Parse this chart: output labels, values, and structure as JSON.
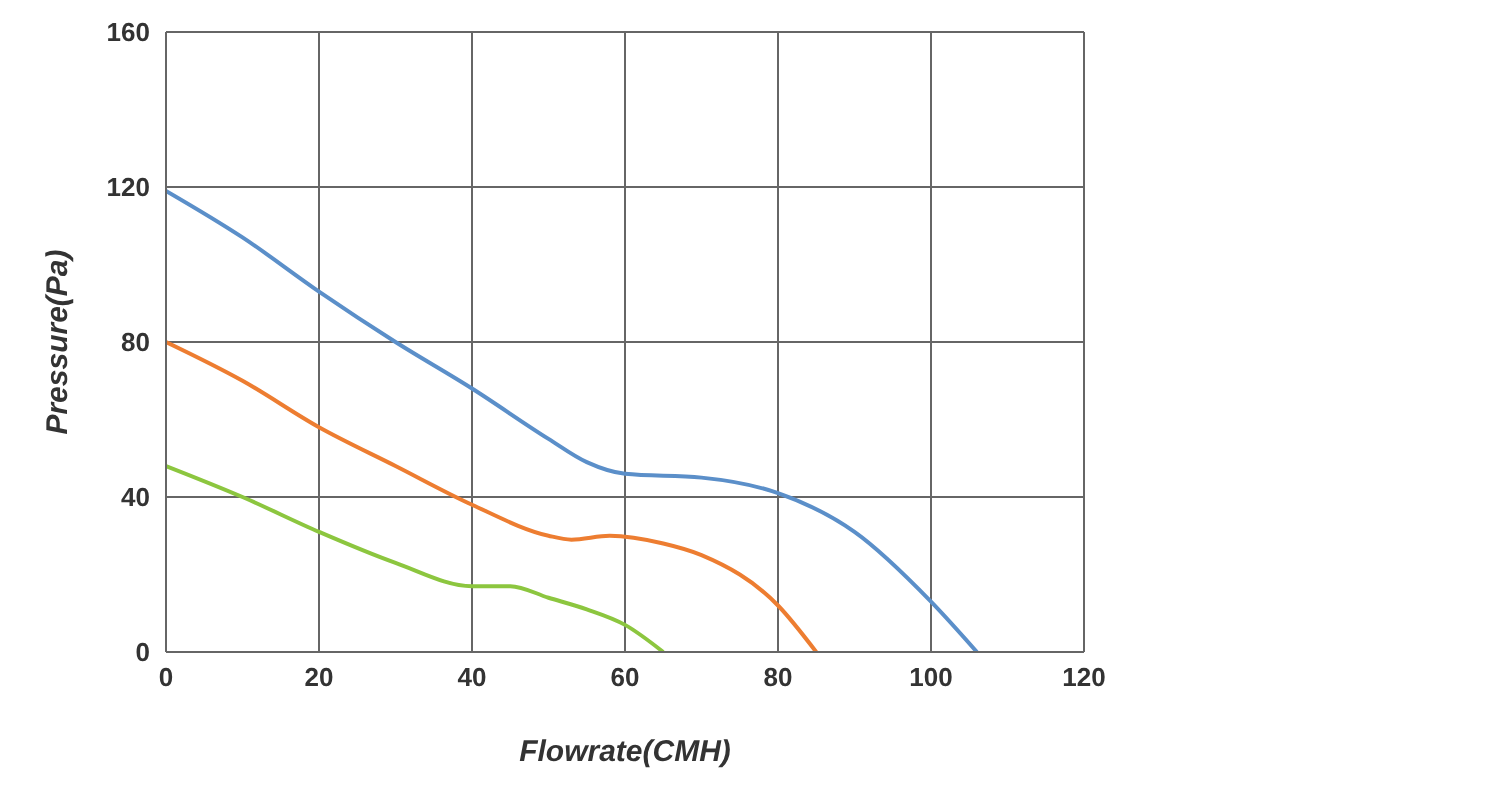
{
  "chart_data": {
    "type": "line",
    "xlabel": "Flowrate(CMH)",
    "ylabel": "Pressure(Pa)",
    "xlim": [
      0,
      120
    ],
    "xticks": [
      0,
      20,
      40,
      60,
      80,
      100,
      120
    ],
    "ylim": [
      0,
      160
    ],
    "yticks": [
      0,
      40,
      80,
      120,
      160
    ],
    "grid": true,
    "marker": "none",
    "line_style": "solid",
    "series": [
      {
        "color": "#5b8fc9",
        "x": [
          0,
          10,
          20,
          30,
          40,
          50,
          55,
          60,
          70,
          80,
          90,
          100,
          106
        ],
        "values": [
          119,
          107,
          93,
          80,
          68,
          55,
          49,
          46,
          45,
          41,
          31,
          13,
          0
        ]
      },
      {
        "color": "#ed7d31",
        "x": [
          0,
          10,
          20,
          30,
          40,
          50,
          53,
          58,
          65,
          70,
          80,
          85
        ],
        "values": [
          80,
          70,
          58,
          48,
          38,
          30,
          29,
          30,
          28,
          25,
          12,
          0
        ]
      },
      {
        "color": "#8cc63f",
        "x": [
          0,
          10,
          20,
          30,
          40,
          45,
          50,
          55,
          60,
          65
        ],
        "values": [
          48,
          40,
          31,
          23,
          17,
          17,
          14,
          11,
          7,
          0
        ]
      }
    ]
  }
}
